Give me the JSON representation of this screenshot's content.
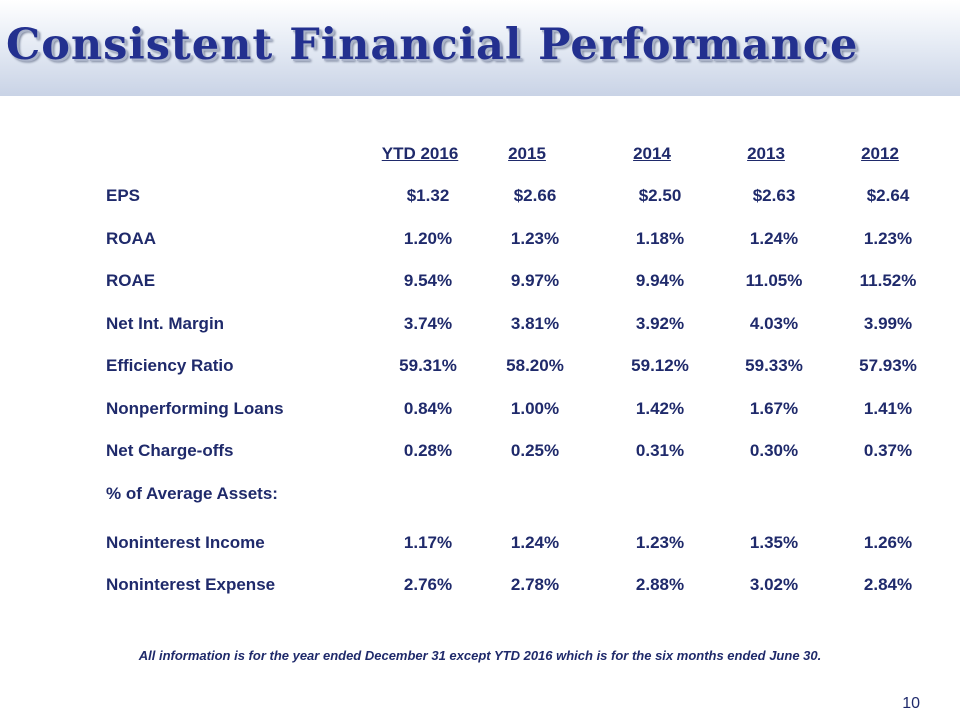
{
  "title": "Consistent Financial Performance",
  "columns": [
    "YTD 2016",
    "2015",
    "2014",
    "2013",
    "2012"
  ],
  "rows": [
    {
      "label": "EPS",
      "values": [
        "$1.32",
        "$2.66",
        "$2.50",
        "$2.63",
        "$2.64"
      ]
    },
    {
      "label": "ROAA",
      "values": [
        "1.20%",
        "1.23%",
        "1.18%",
        "1.24%",
        "1.23%"
      ]
    },
    {
      "label": "ROAE",
      "values": [
        "9.54%",
        "9.97%",
        "9.94%",
        "11.05%",
        "11.52%"
      ]
    },
    {
      "label": "Net Int. Margin",
      "values": [
        "3.74%",
        "3.81%",
        "3.92%",
        "4.03%",
        "3.99%"
      ]
    },
    {
      "label": "Efficiency Ratio",
      "values": [
        "59.31%",
        "58.20%",
        "59.12%",
        "59.33%",
        "57.93%"
      ]
    },
    {
      "label": "Nonperforming Loans",
      "values": [
        "0.84%",
        "1.00%",
        "1.42%",
        "1.67%",
        "1.41%"
      ]
    },
    {
      "label": "Net Charge-offs",
      "values": [
        "0.28%",
        "0.25%",
        "0.31%",
        "0.30%",
        "0.37%"
      ]
    },
    {
      "label": "% of Average Assets:",
      "values": [
        "",
        "",
        "",
        "",
        ""
      ]
    },
    {
      "label": "Noninterest Income",
      "values": [
        "1.17%",
        "1.24%",
        "1.23%",
        "1.35%",
        "1.26%"
      ]
    },
    {
      "label": "Noninterest Expense",
      "values": [
        "2.76%",
        "2.78%",
        "2.88%",
        "3.02%",
        "2.84%"
      ]
    }
  ],
  "footnote": "All information is for the year ended December 31 except YTD 2016 which is for the six months ended June 30.",
  "page_number": "10"
}
